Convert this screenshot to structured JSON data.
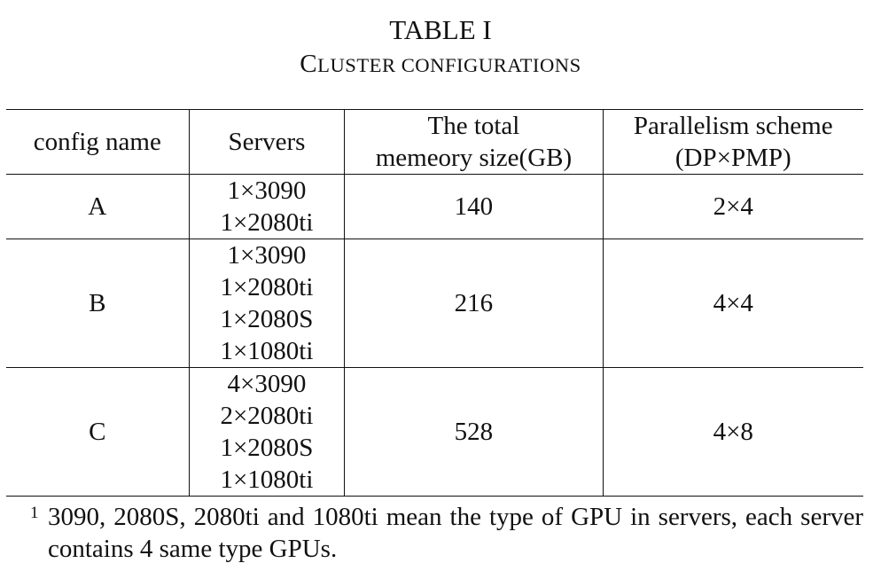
{
  "caption": {
    "label": "TABLE I",
    "title_first_letter": "C",
    "title_rest": "LUSTER CONFIGURATIONS"
  },
  "table": {
    "headers": {
      "config_name": "config name",
      "servers": "Servers",
      "memory_line1": "The total",
      "memory_line2": "memeory size(GB)",
      "parallelism_line1": "Parallelism scheme",
      "parallelism_line2": "(DP×PMP)"
    },
    "rows": [
      {
        "config": "A",
        "servers": [
          "1×3090",
          "1×2080ti"
        ],
        "memory": "140",
        "parallelism": "2×4"
      },
      {
        "config": "B",
        "servers": [
          "1×3090",
          "1×2080ti",
          "1×2080S",
          "1×1080ti"
        ],
        "memory": "216",
        "parallelism": "4×4"
      },
      {
        "config": "C",
        "servers": [
          "4×3090",
          "2×2080ti",
          "1×2080S",
          "1×1080ti"
        ],
        "memory": "528",
        "parallelism": "4×8"
      }
    ]
  },
  "footnote": {
    "marker": "1",
    "text": "3090, 2080S, 2080ti and 1080ti mean the type of GPU in servers, each server contains 4 same type GPUs."
  }
}
